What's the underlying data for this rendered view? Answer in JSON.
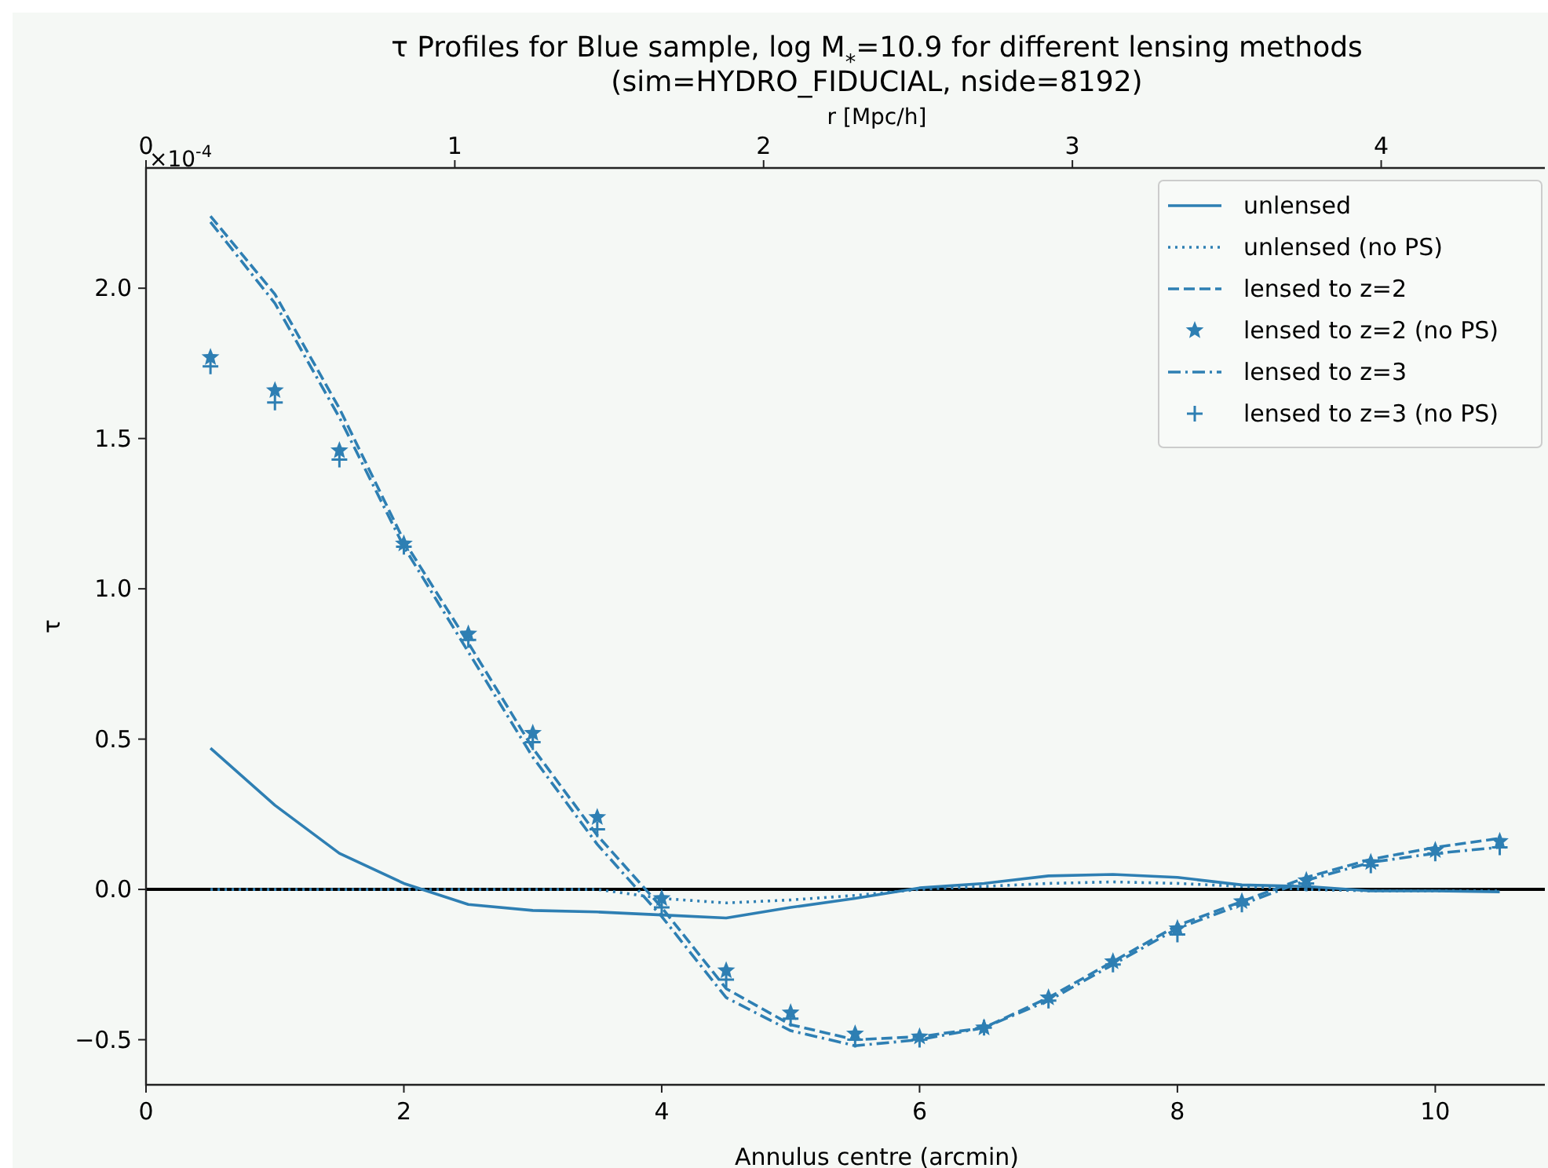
{
  "chart_data": {
    "type": "line",
    "title": "τ Profiles for Blue sample, log M$_{*}$=10.9 for different lensing methods",
    "subtitle": "(sim=HYDRO_FIDUCIAL, nside=8192)",
    "xlabel": "Annulus centre (arcmin)",
    "ylabel": "τ",
    "x2label": "r [Mpc/h]",
    "annotations": [
      "×10$^{-4}$"
    ],
    "x": [
      0.5,
      1,
      1.5,
      2,
      2.5,
      3,
      3.5,
      4,
      4.5,
      5,
      5.5,
      6,
      6.5,
      7,
      7.5,
      8,
      8.5,
      9,
      9.5,
      10,
      10.5
    ],
    "xlim": [
      0,
      10.85
    ],
    "xticks": [
      0,
      2,
      4,
      6,
      8,
      10
    ],
    "x2lim": [
      0,
      4.53
    ],
    "x2ticks": [
      0,
      1,
      2,
      3,
      4
    ],
    "ylim": [
      -0.65,
      2.4
    ],
    "yticks": [
      {
        "value": -0.5,
        "label": "−0.5"
      },
      {
        "value": 0,
        "label": "0.0"
      },
      {
        "value": 0.5,
        "label": "0.5"
      },
      {
        "value": 1,
        "label": "1.0"
      },
      {
        "value": 1.5,
        "label": "1.5"
      },
      {
        "value": 2,
        "label": "2.0"
      }
    ],
    "ref_lines": [
      {
        "axis": "y",
        "value": 0,
        "color": "#000000"
      }
    ],
    "legend": "top right",
    "grid": false,
    "series": [
      {
        "name": "unlensed",
        "type": "line",
        "line_style": "solid",
        "color": "#2e7fb3",
        "values": [
          0.47,
          0.28,
          0.12,
          0.02,
          -0.05,
          -0.07,
          -0.075,
          -0.085,
          -0.095,
          -0.06,
          -0.03,
          0.005,
          0.02,
          0.045,
          0.05,
          0.04,
          0.015,
          0.01,
          -0.005,
          -0.005,
          -0.008
        ]
      },
      {
        "name": "unlensed (no PS)",
        "type": "line",
        "line_style": "dotted",
        "color": "#2e7fb3",
        "values": [
          0,
          0,
          0,
          0,
          0,
          0,
          0,
          -0.03,
          -0.045,
          -0.035,
          -0.02,
          0,
          0.01,
          0.02,
          0.025,
          0.02,
          0.01,
          0,
          -0.005,
          -0.005,
          -0.005
        ]
      },
      {
        "name": "lensed to z=2",
        "type": "line",
        "line_style": "dashed",
        "color": "#2e7fb3",
        "values": [
          2.24,
          1.98,
          1.6,
          1.16,
          0.82,
          0.47,
          0.18,
          -0.06,
          -0.33,
          -0.45,
          -0.5,
          -0.49,
          -0.46,
          -0.36,
          -0.24,
          -0.12,
          -0.04,
          0.04,
          0.1,
          0.14,
          0.17
        ]
      },
      {
        "name": "lensed to z=2 (no PS)",
        "type": "scatter",
        "marker": "star",
        "color": "#2e7fb3",
        "values": [
          1.77,
          1.66,
          1.46,
          1.15,
          0.85,
          0.52,
          0.24,
          -0.03,
          -0.27,
          -0.41,
          -0.48,
          -0.49,
          -0.46,
          -0.36,
          -0.24,
          -0.13,
          -0.04,
          0.03,
          0.09,
          0.13,
          0.16
        ]
      },
      {
        "name": "lensed to z=3",
        "type": "line",
        "line_style": "dashdot",
        "color": "#2e7fb3",
        "values": [
          2.22,
          1.95,
          1.57,
          1.14,
          0.79,
          0.44,
          0.15,
          -0.09,
          -0.36,
          -0.47,
          -0.52,
          -0.5,
          -0.46,
          -0.37,
          -0.25,
          -0.13,
          -0.05,
          0.03,
          0.09,
          0.12,
          0.14
        ]
      },
      {
        "name": "lensed to z=3 (no PS)",
        "type": "scatter",
        "marker": "cross",
        "color": "#2e7fb3",
        "values": [
          1.74,
          1.62,
          1.43,
          1.14,
          0.83,
          0.49,
          0.2,
          -0.06,
          -0.3,
          -0.43,
          -0.5,
          -0.5,
          -0.46,
          -0.37,
          -0.25,
          -0.15,
          -0.05,
          0.02,
          0.08,
          0.12,
          0.14
        ]
      }
    ]
  }
}
